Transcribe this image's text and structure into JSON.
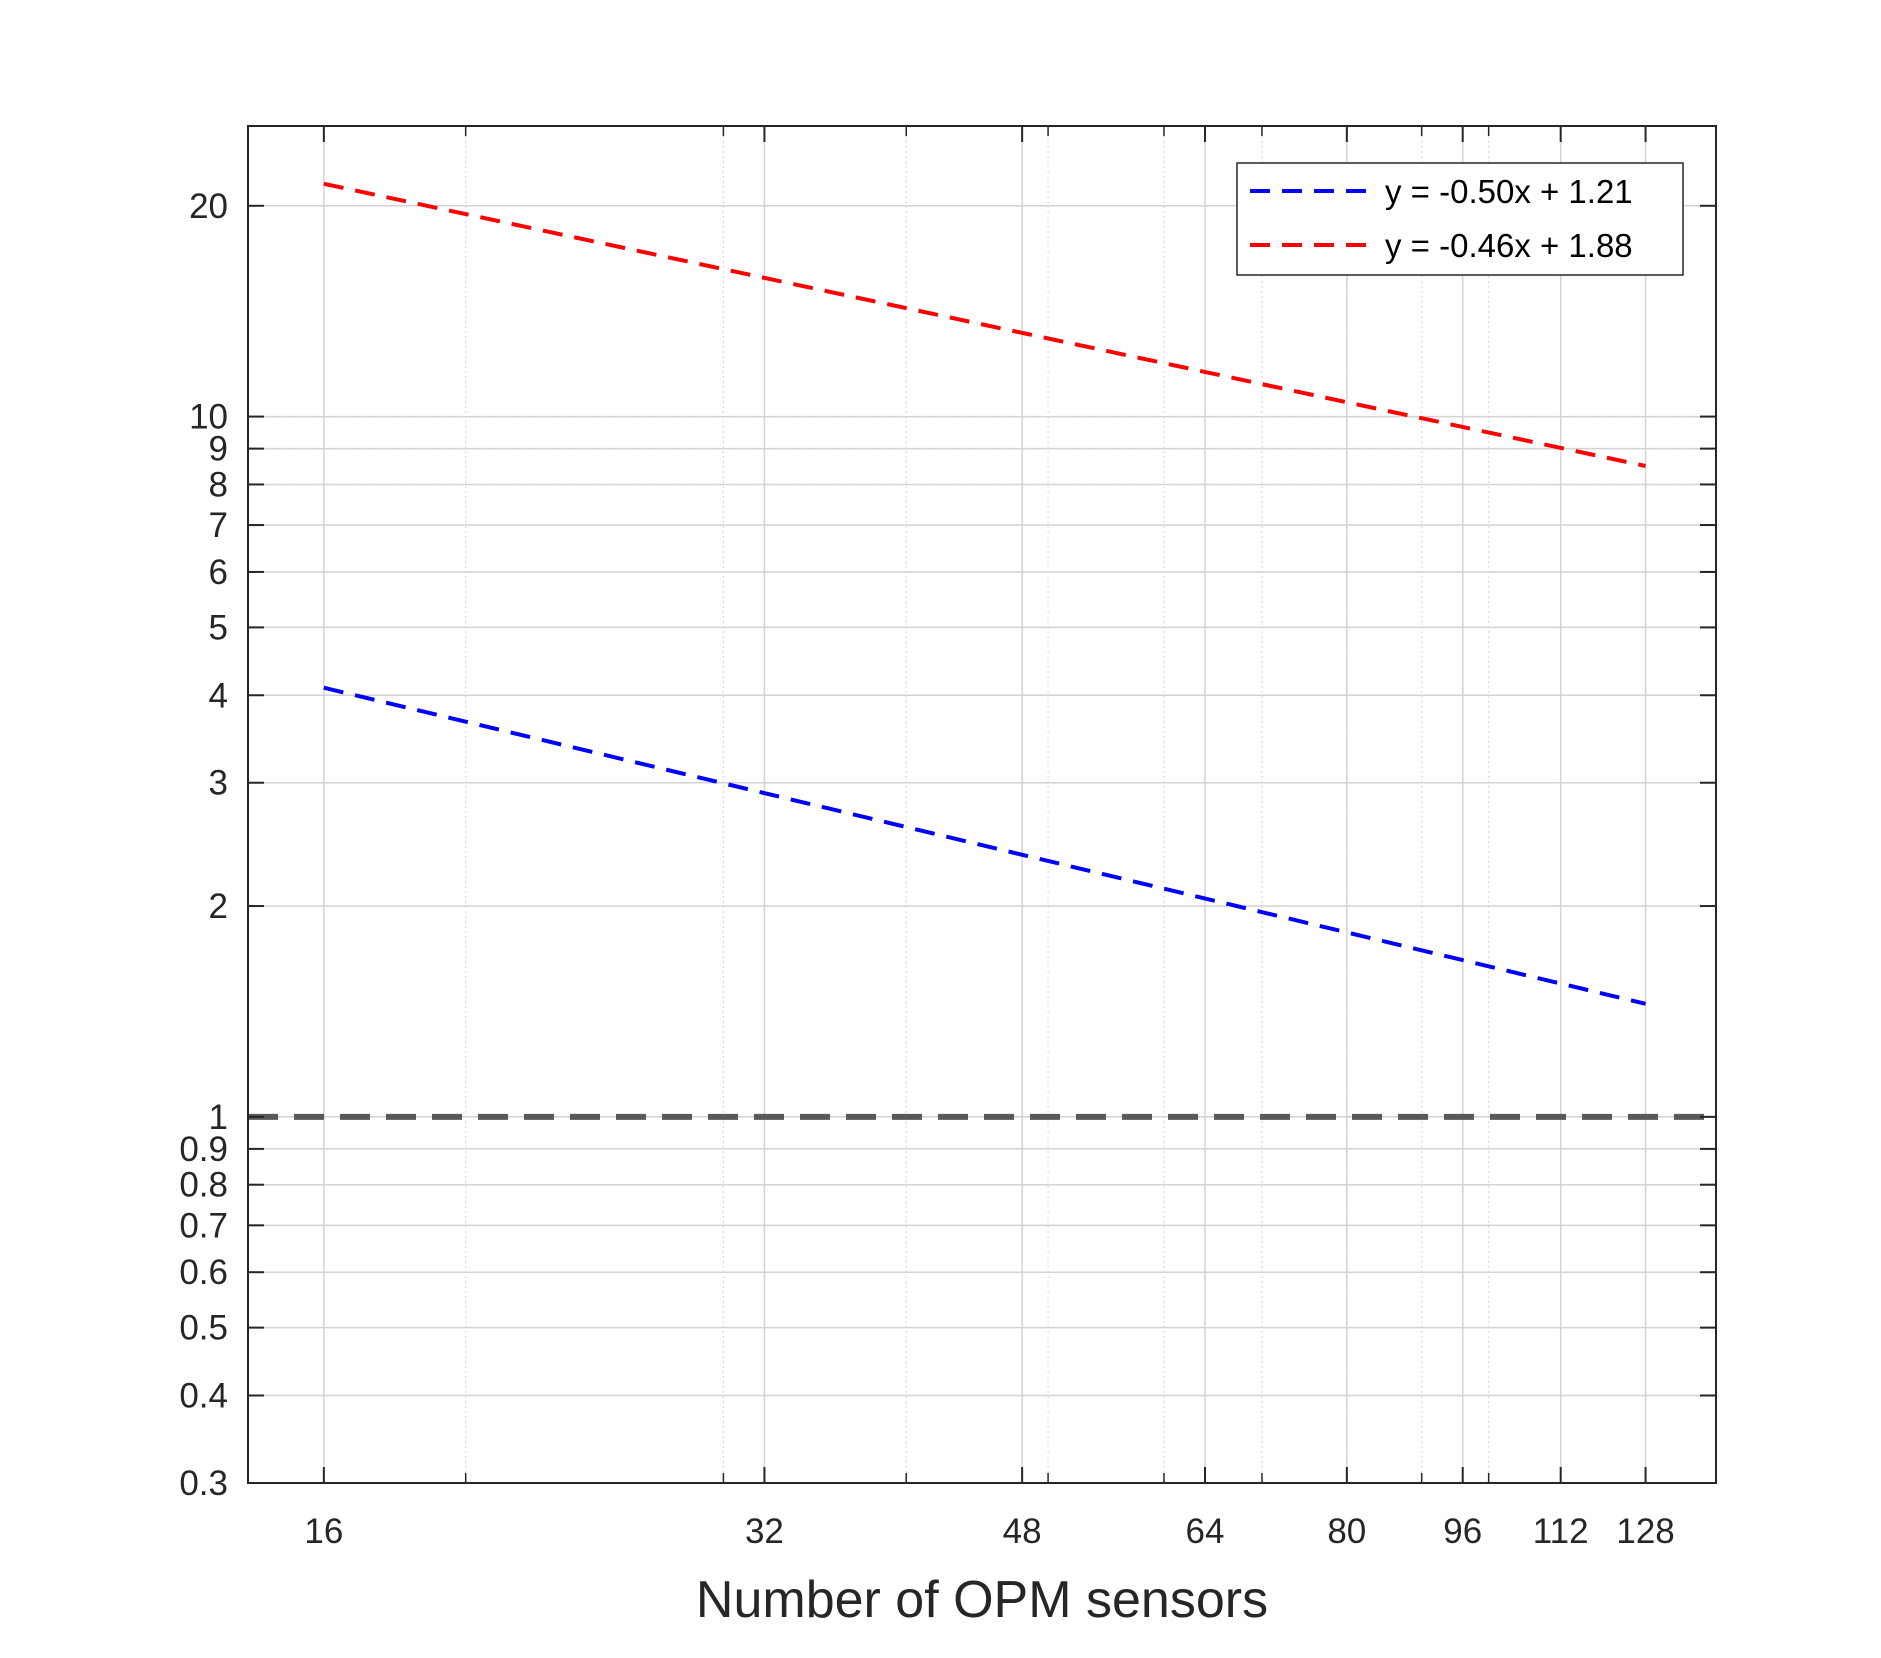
{
  "chart_data": {
    "type": "line",
    "title": "",
    "xlabel": "Number of OPM sensors",
    "ylabel": "",
    "x_scale": "log",
    "y_scale": "log",
    "xlim": [
      14.2,
      143
    ],
    "ylim": [
      0.3,
      26
    ],
    "x_ticks": [
      16,
      32,
      48,
      64,
      80,
      96,
      112,
      128
    ],
    "x_tick_labels": [
      "16",
      "32",
      "48",
      "64",
      "80",
      "96",
      "112",
      "128"
    ],
    "y_ticks": [
      0.3,
      0.4,
      0.5,
      0.6,
      0.7,
      0.8,
      0.9,
      1,
      2,
      3,
      4,
      5,
      6,
      7,
      8,
      9,
      10,
      20
    ],
    "y_tick_labels": [
      "0.3",
      "0.4",
      "0.5",
      "0.6",
      "0.7",
      "0.8",
      "0.9",
      "1",
      "2",
      "3",
      "4",
      "5",
      "6",
      "7",
      "8",
      "9",
      "10",
      "20"
    ],
    "grid": true,
    "minor_grid": true,
    "legend_position": "top-right",
    "series": [
      {
        "name": "y = -0.50x + 1.21",
        "color": "#0000ff",
        "style": "dashed",
        "x": [
          16,
          128
        ],
        "y": [
          4.1,
          1.45
        ]
      },
      {
        "name": "y = -0.46x + 1.88",
        "color": "#ff0000",
        "style": "dashed",
        "x": [
          16,
          128
        ],
        "y": [
          21.5,
          8.5
        ]
      }
    ],
    "reference_lines": [
      {
        "axis": "y",
        "value": 1,
        "color": "#595959",
        "style": "dashed"
      }
    ]
  }
}
